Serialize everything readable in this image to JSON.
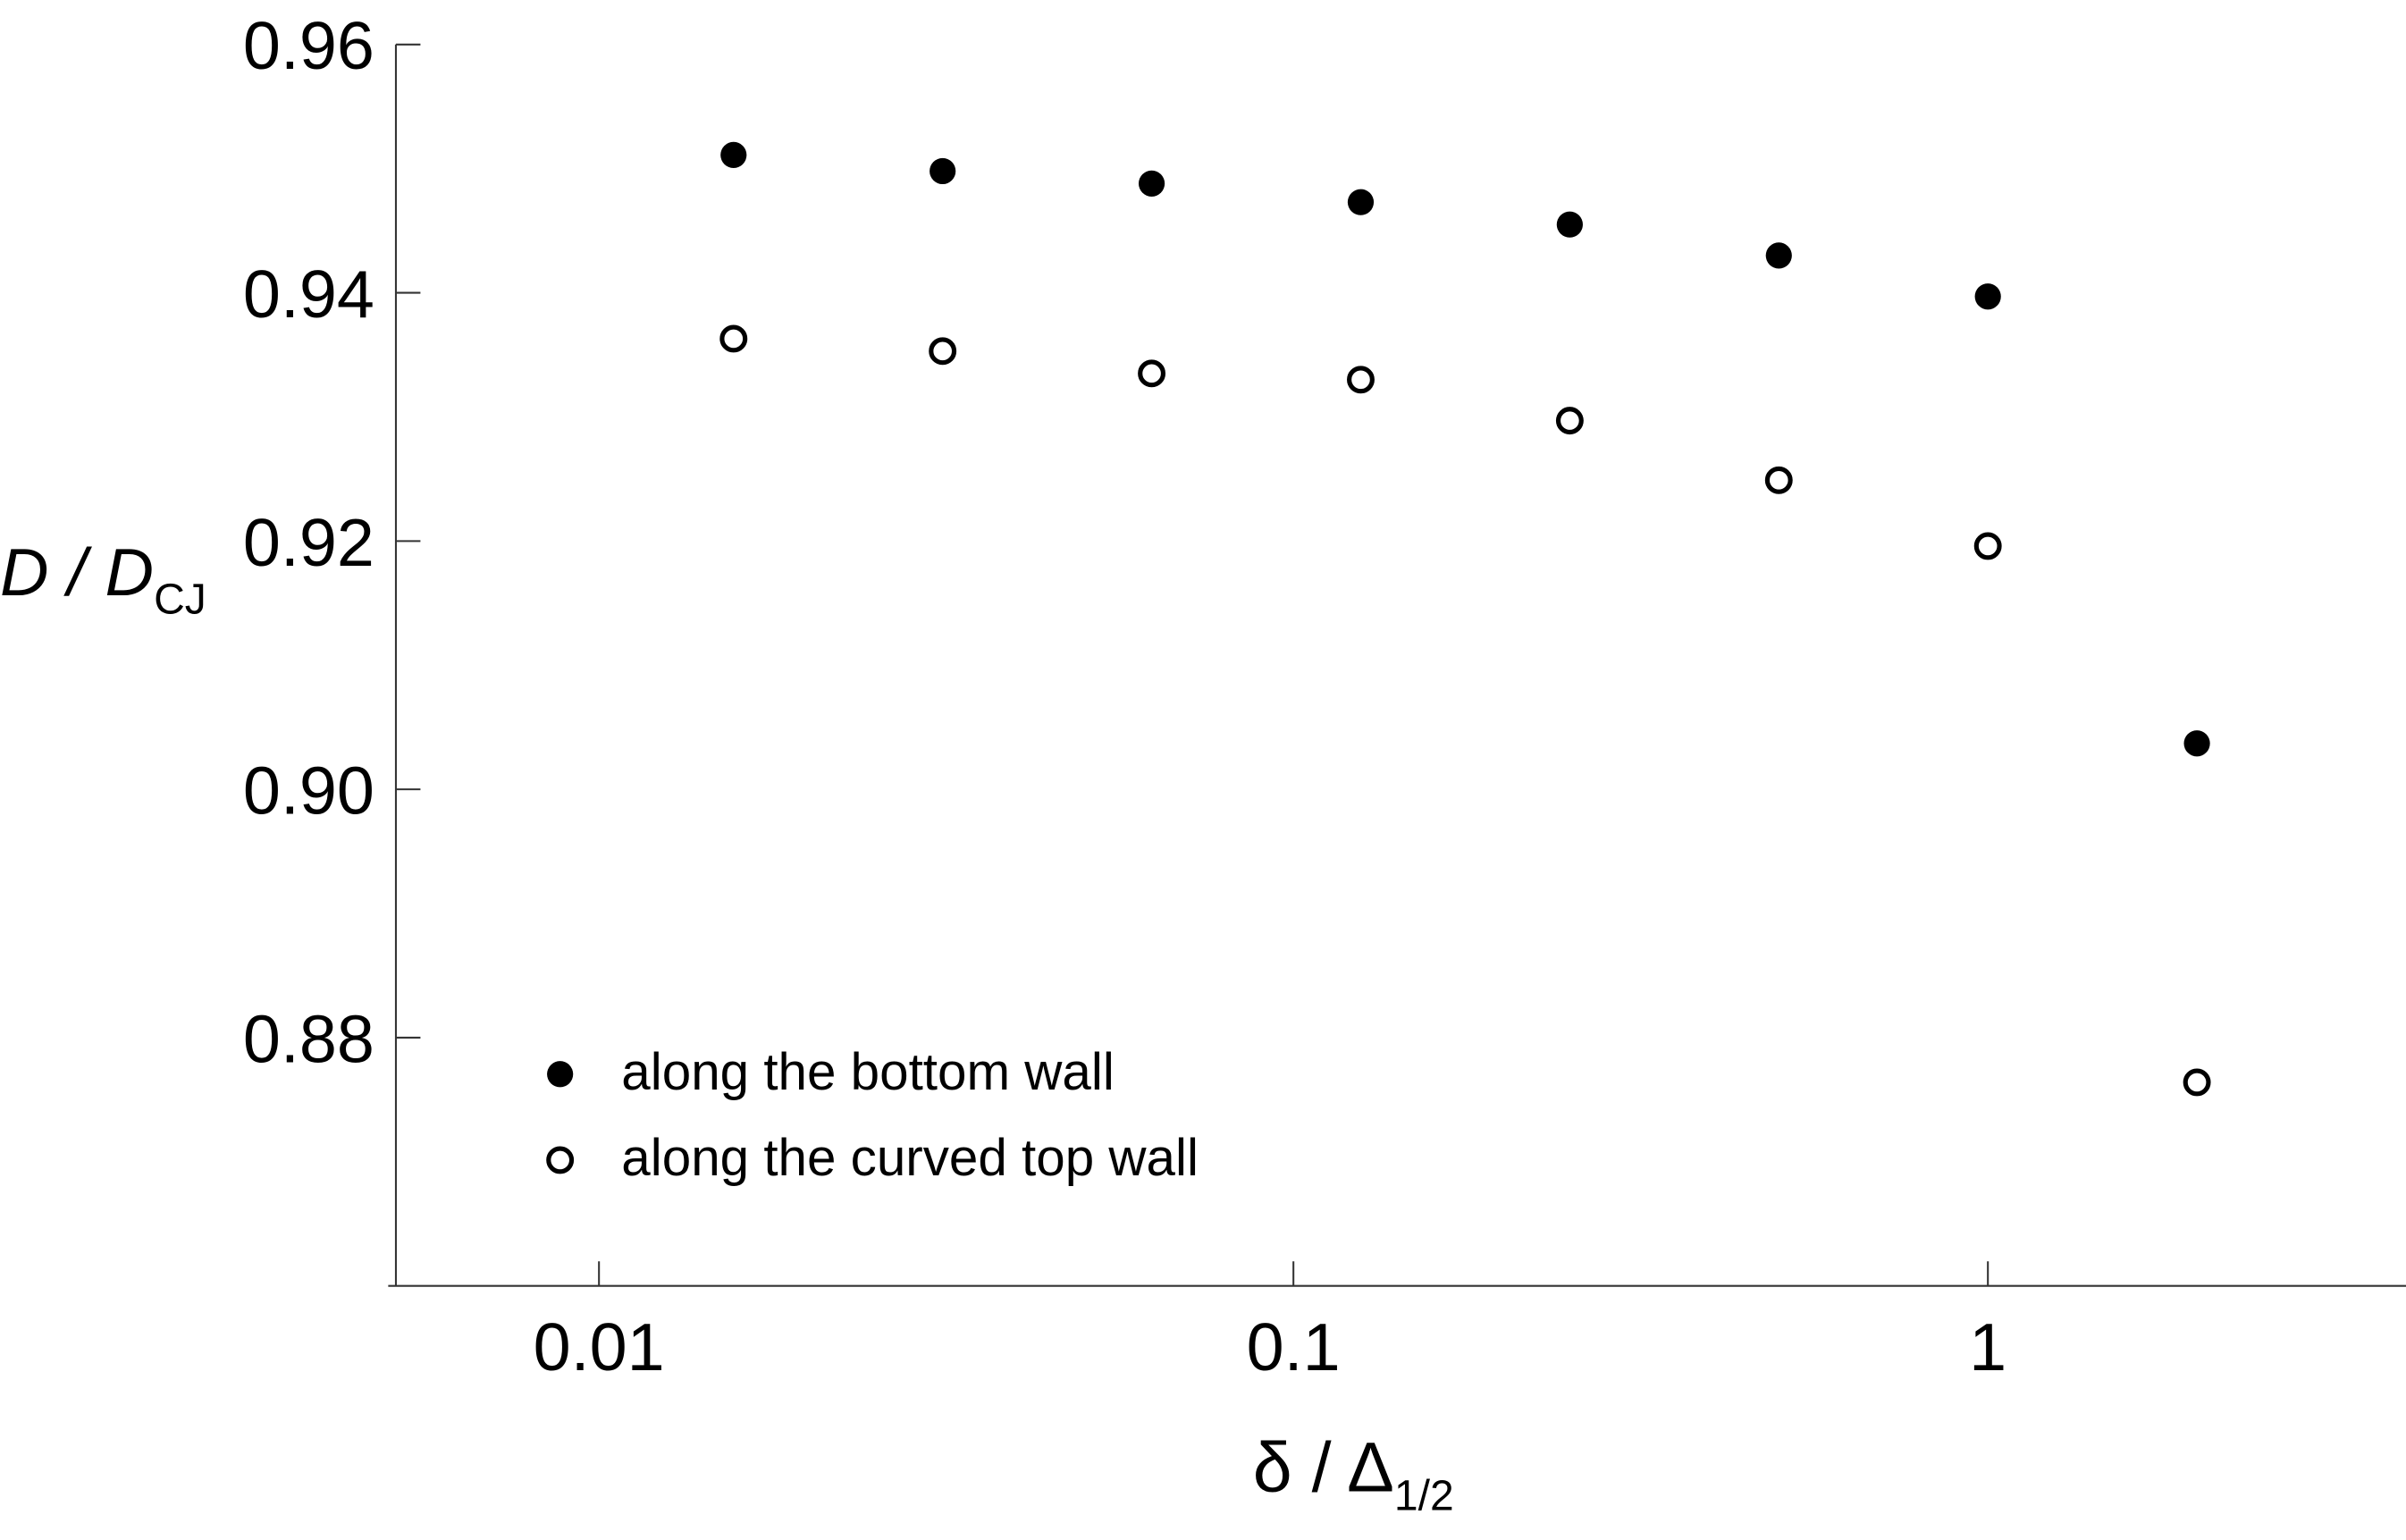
{
  "chart_data": {
    "type": "scatter",
    "xlabel": "δ / Δ",
    "xlabel_sub": "1/2",
    "ylabel": "D / D",
    "ylabel_sub": "CJ",
    "x_log": true,
    "xlim": [
      0.0051,
      4
    ],
    "ylim": [
      0.86,
      0.96
    ],
    "xticks": [
      0.01,
      0.1,
      1
    ],
    "yticks": [
      0.96,
      0.94,
      0.92,
      {
        "value": 0.9,
        "label": "0.90"
      },
      0.88
    ],
    "legend": "lower left",
    "series": [
      {
        "name": "along the bottom wall",
        "color": "#000000",
        "marker": "filled",
        "x": [
          0.015625,
          0.03125,
          0.0625,
          0.125,
          0.25,
          0.5,
          1,
          2
        ],
        "values": [
          0.9511,
          0.9498,
          0.9488,
          0.9473,
          0.9455,
          0.943,
          0.9397,
          0.9037
        ]
      },
      {
        "name": "along the curved top wall",
        "color": "#000000",
        "marker": "open",
        "x": [
          0.015625,
          0.03125,
          0.0625,
          0.125,
          0.25,
          0.5,
          1,
          2
        ],
        "values": [
          0.9363,
          0.9353,
          0.9335,
          0.933,
          0.9297,
          0.9249,
          0.9196,
          0.8764
        ]
      }
    ]
  }
}
